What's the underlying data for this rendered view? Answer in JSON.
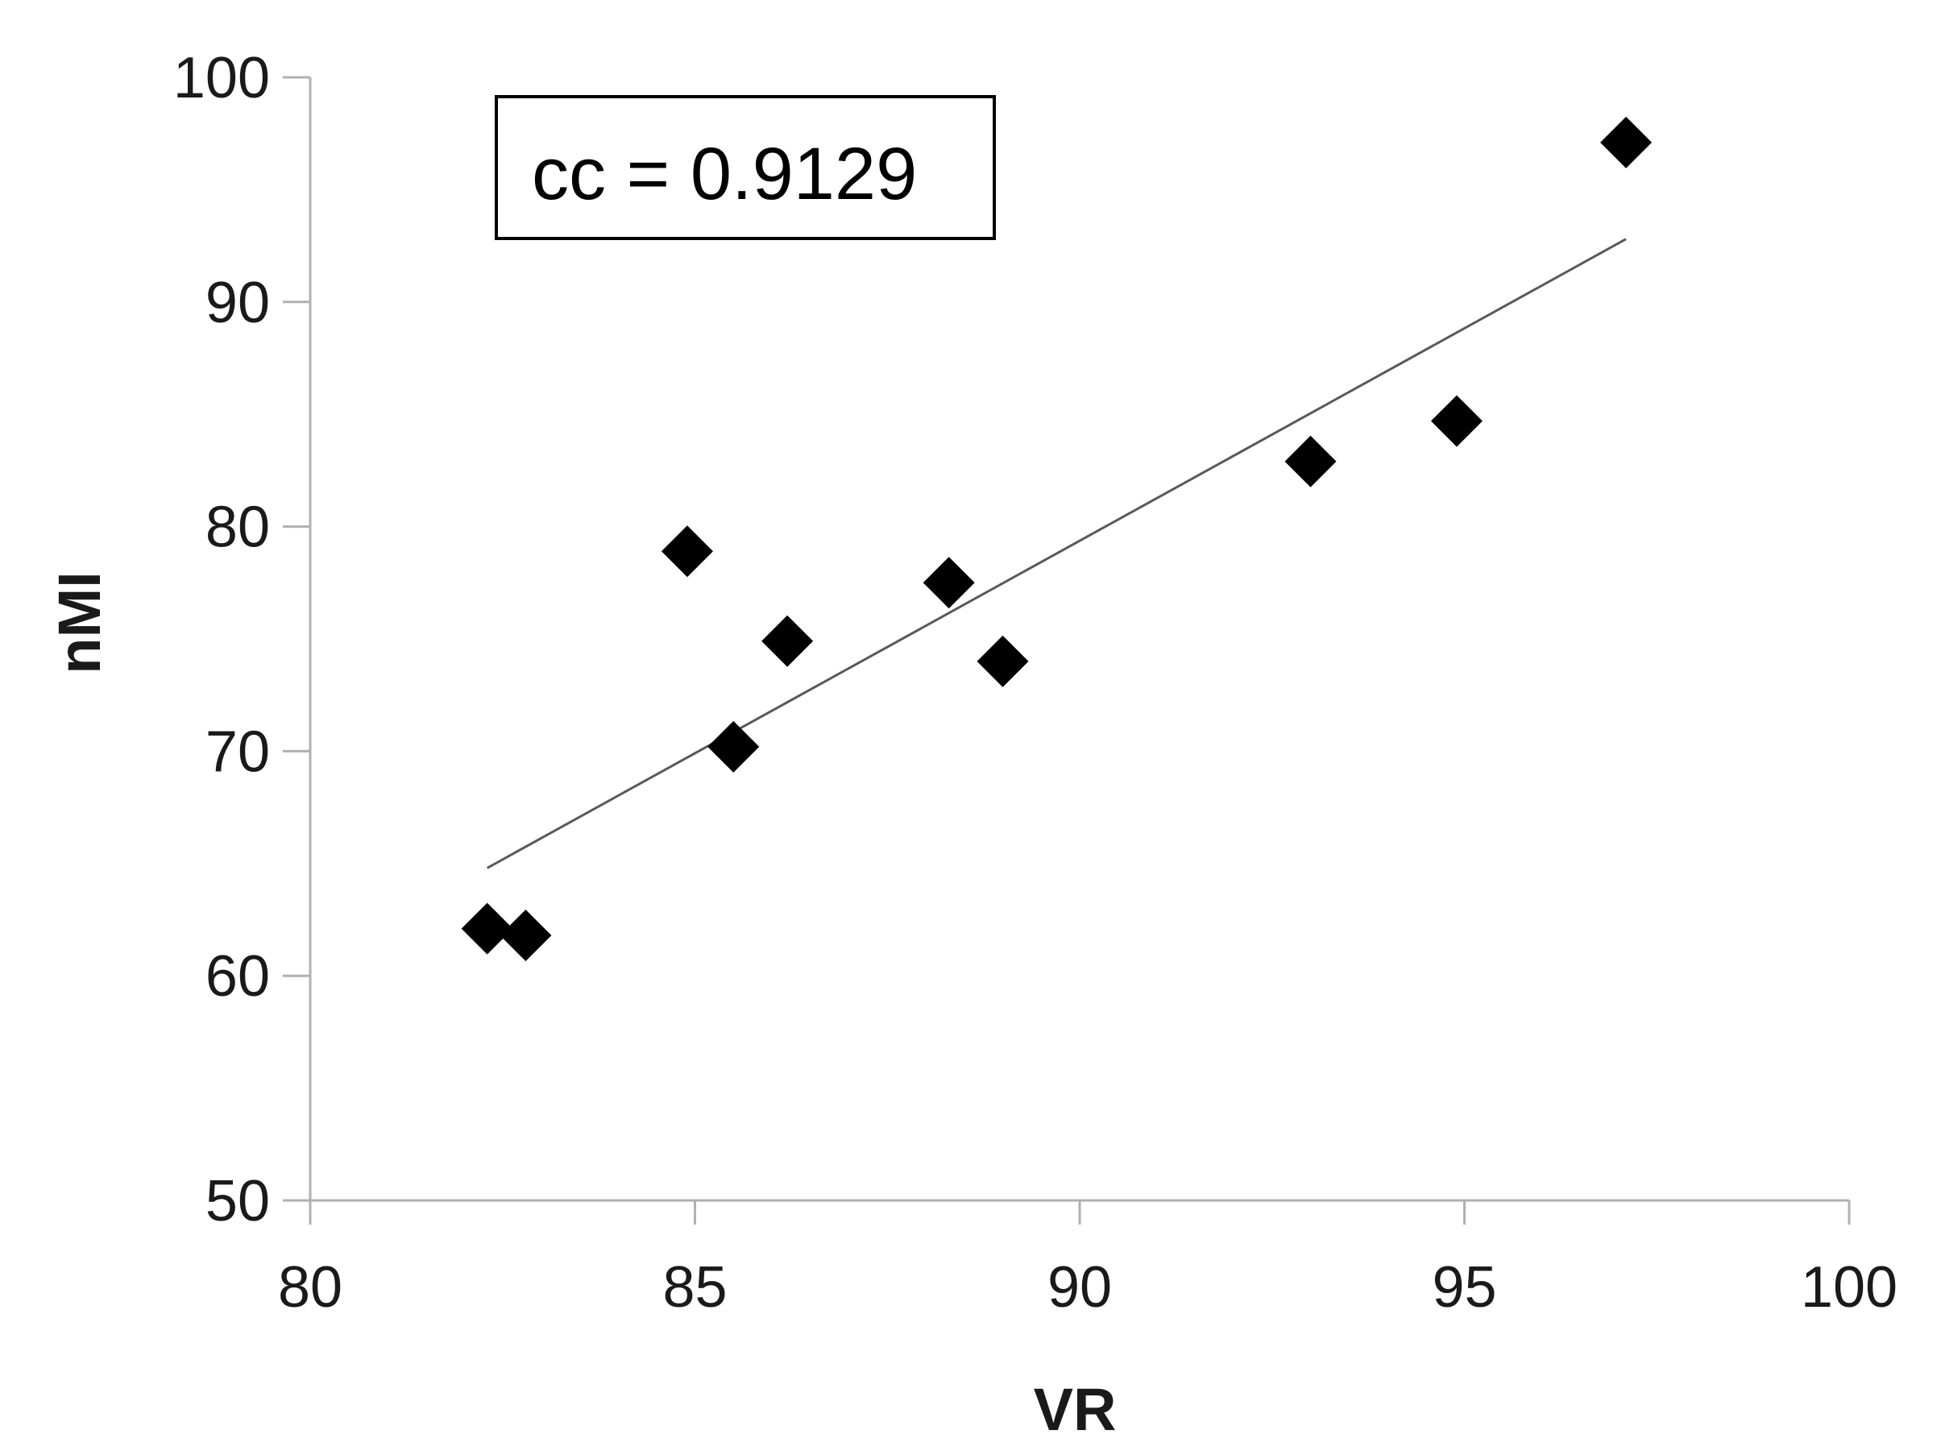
{
  "chart_data": {
    "type": "scatter",
    "xlabel": "VR",
    "ylabel": "nMI",
    "xlim": [
      80,
      100
    ],
    "ylim": [
      50,
      100
    ],
    "xticks": [
      80,
      85,
      90,
      95,
      100
    ],
    "yticks": [
      50,
      60,
      70,
      80,
      90,
      100
    ],
    "xtick_labels": [
      "80",
      "85",
      "90",
      "95",
      "100"
    ],
    "ytick_labels": [
      "50",
      "60",
      "70",
      "80",
      "90",
      "100"
    ],
    "grid": false,
    "marker": "diamond",
    "marker_color": "#000000",
    "trendline_color": "#595959",
    "points": [
      {
        "x": 82.3,
        "y": 62.1
      },
      {
        "x": 82.8,
        "y": 61.8
      },
      {
        "x": 84.9,
        "y": 78.9
      },
      {
        "x": 85.5,
        "y": 70.2
      },
      {
        "x": 86.2,
        "y": 74.9
      },
      {
        "x": 88.3,
        "y": 77.5
      },
      {
        "x": 89.0,
        "y": 74.0
      },
      {
        "x": 93.0,
        "y": 82.9
      },
      {
        "x": 94.9,
        "y": 84.7
      },
      {
        "x": 97.1,
        "y": 97.1
      }
    ],
    "trendline": {
      "x": [
        82.3,
        97.1
      ],
      "y": [
        64.8,
        92.8
      ]
    },
    "annotation": "cc = 0.9129"
  }
}
